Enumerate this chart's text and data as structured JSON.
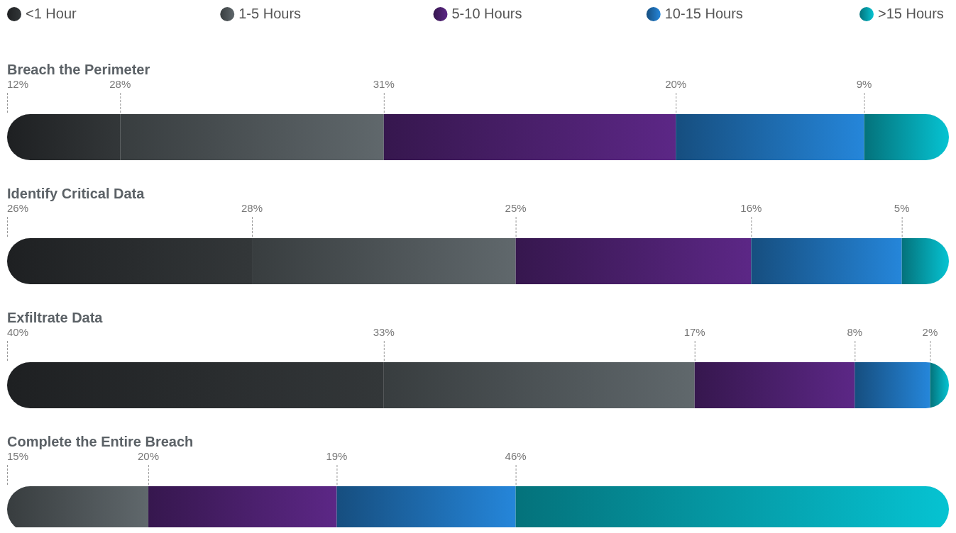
{
  "chart_data": {
    "type": "bar",
    "orientation": "horizontal",
    "stacked": true,
    "categories": [
      "Breach the Perimeter",
      "Identify Critical Data",
      "Exfiltrate Data",
      "Complete the Entire Breach"
    ],
    "xlim": [
      0,
      100
    ],
    "tick_labels": "y",
    "legend": "top",
    "series": [
      {
        "name": "<1 Hour",
        "color": "#2b2e30",
        "values": [
          12,
          26,
          40,
          null
        ],
        "value_labels": [
          "12%",
          "26%",
          "40%",
          null
        ]
      },
      {
        "name": "1-5 Hours",
        "color": "#50575a",
        "values": [
          28,
          28,
          33,
          15
        ],
        "value_labels": [
          "28%",
          "28%",
          "33%",
          "15%"
        ]
      },
      {
        "name": "5-10 Hours",
        "color": "#4d2170",
        "values": [
          31,
          25,
          17,
          20
        ],
        "value_labels": [
          "31%",
          "25%",
          "17%",
          "20%"
        ]
      },
      {
        "name": "10-15 Hours",
        "color": "#1f70b6",
        "values": [
          20,
          16,
          8,
          19
        ],
        "value_labels": [
          "20%",
          "16%",
          "8%",
          "19%"
        ]
      },
      {
        "name": ">15 Hours",
        "color": "#05a3b0",
        "values": [
          9,
          5,
          2,
          46
        ],
        "value_labels": [
          "9%",
          "5%",
          "2%",
          "46%"
        ]
      }
    ]
  }
}
